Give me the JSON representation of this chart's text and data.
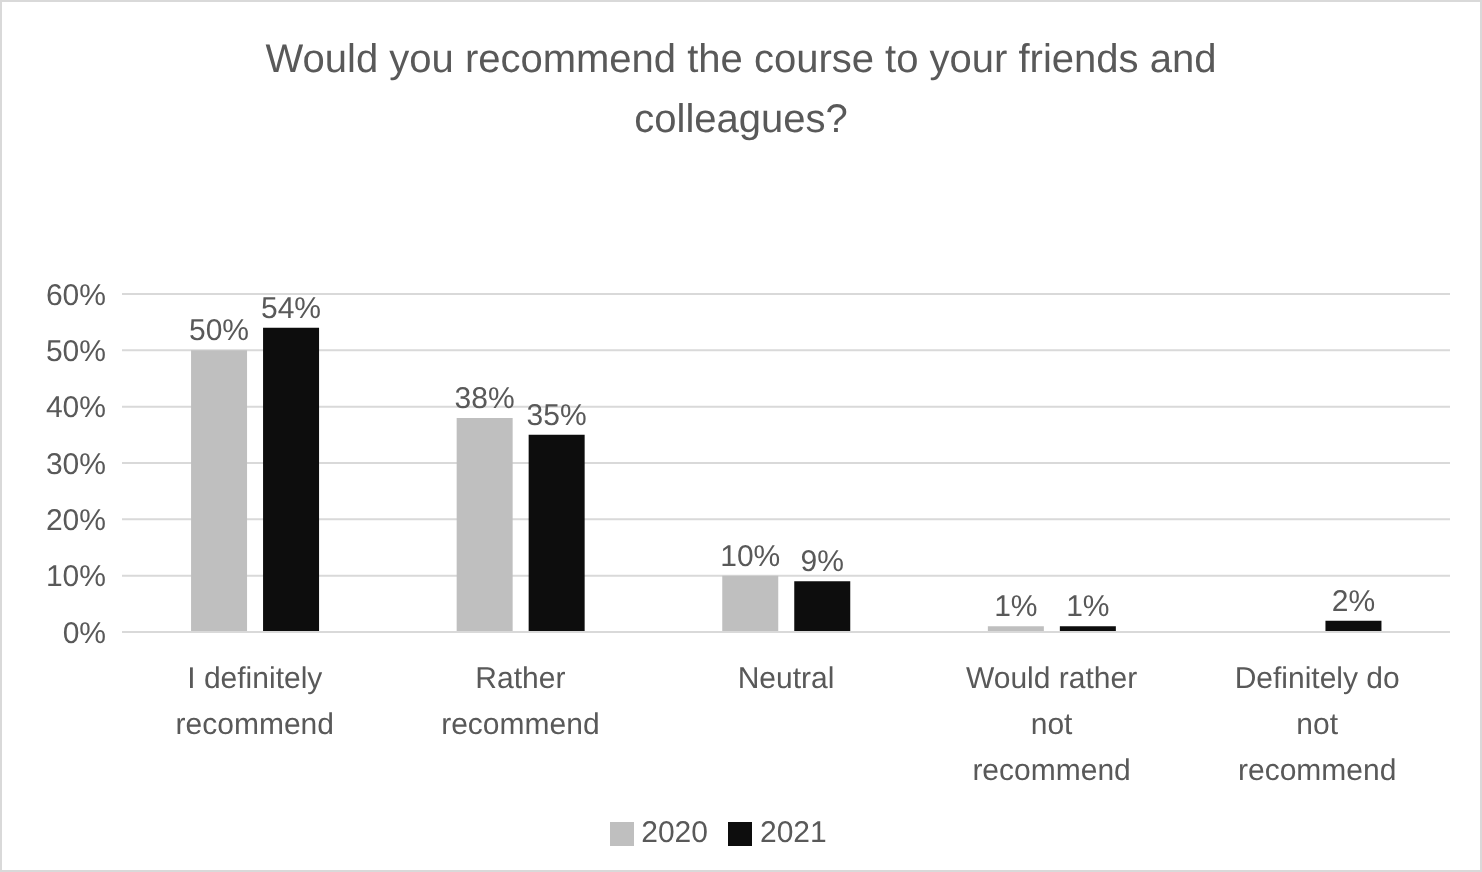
{
  "chart_data": {
    "type": "bar",
    "title": "Would you recommend the course to your friends and colleagues?",
    "categories": [
      "I definitely recommend",
      "Rather recommend",
      "Neutral",
      "Would rather not recommend",
      "Definitely do not recommend"
    ],
    "series": [
      {
        "name": "2020",
        "color": "#bfbfbf",
        "values": [
          50,
          38,
          10,
          1,
          null
        ],
        "value_labels": [
          "50%",
          "38%",
          "10%",
          "1%",
          null
        ]
      },
      {
        "name": "2021",
        "color": "#0d0d0d",
        "values": [
          54,
          35,
          9,
          1,
          2
        ],
        "value_labels": [
          "54%",
          "35%",
          "9%",
          "1%",
          "2%"
        ]
      }
    ],
    "ylim": [
      0,
      60
    ],
    "yticks": [
      {
        "value": 0,
        "label": "0%"
      },
      {
        "value": 10,
        "label": "10%"
      },
      {
        "value": 20,
        "label": "20%"
      },
      {
        "value": 30,
        "label": "30%"
      },
      {
        "value": 40,
        "label": "40%"
      },
      {
        "value": 50,
        "label": "50%"
      },
      {
        "value": 60,
        "label": "60%"
      }
    ],
    "grid": "y",
    "legend": "bottom"
  }
}
